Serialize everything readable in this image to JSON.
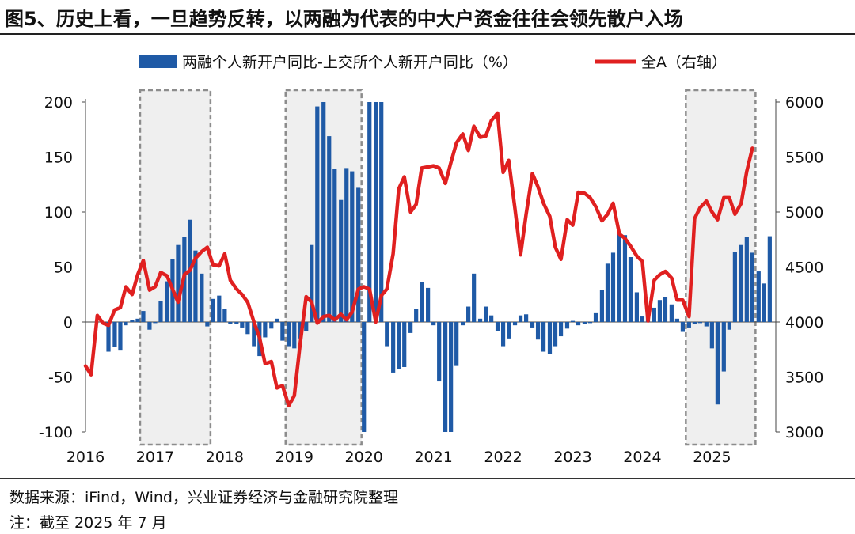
{
  "figure": {
    "title": "图5、历史上看，一旦趋势反转，以两融为代表的中大户资金往往会领先散户入场",
    "source": "数据来源：iFind，Wind，兴业证券经济与金融研究院整理",
    "note": "注：截至 2025 年 7 月"
  },
  "chart_data": {
    "type": "bar+line",
    "legend": [
      {
        "name": "两融个人新开户同比-上交所个人新开户同比（%）",
        "kind": "bar",
        "color": "#1f5aa6"
      },
      {
        "name": "全A（右轴）",
        "kind": "line",
        "color": "#e02020"
      }
    ],
    "x_labels": [
      "2016",
      "2017",
      "2018",
      "2019",
      "2020",
      "2021",
      "2022",
      "2023",
      "2024",
      "2025"
    ],
    "y_left": {
      "min": -100,
      "max": 200,
      "ticks": [
        -100,
        -50,
        0,
        50,
        100,
        150,
        200
      ]
    },
    "y_right": {
      "min": 3000,
      "max": 6000,
      "ticks": [
        3000,
        3500,
        4000,
        4500,
        5000,
        5500,
        6000
      ]
    },
    "time_start": 2016.0,
    "time_end": 2025.583,
    "bar_series": {
      "name": "两融个人新开户同比-上交所个人新开户同比（%）",
      "values": [
        [
          2016.33,
          -27
        ],
        [
          2016.42,
          -23
        ],
        [
          2016.5,
          -26
        ],
        [
          2016.58,
          -3
        ],
        [
          2016.67,
          2
        ],
        [
          2016.75,
          3
        ],
        [
          2016.83,
          10
        ],
        [
          2016.92,
          -7
        ],
        [
          2017.0,
          -1
        ],
        [
          2017.08,
          19
        ],
        [
          2017.17,
          37
        ],
        [
          2017.25,
          57
        ],
        [
          2017.33,
          70
        ],
        [
          2017.42,
          77
        ],
        [
          2017.5,
          93
        ],
        [
          2017.58,
          65
        ],
        [
          2017.67,
          44
        ],
        [
          2017.75,
          -4
        ],
        [
          2017.83,
          21
        ],
        [
          2017.92,
          24
        ],
        [
          2018.0,
          12
        ],
        [
          2018.08,
          -2
        ],
        [
          2018.17,
          -2
        ],
        [
          2018.25,
          -5
        ],
        [
          2018.33,
          -11
        ],
        [
          2018.42,
          -22
        ],
        [
          2018.5,
          -31
        ],
        [
          2018.58,
          -14
        ],
        [
          2018.67,
          -6
        ],
        [
          2018.75,
          3
        ],
        [
          2018.83,
          -17
        ],
        [
          2018.92,
          -22
        ],
        [
          2019.0,
          -24
        ],
        [
          2019.08,
          -15
        ],
        [
          2019.17,
          -8
        ],
        [
          2019.25,
          70
        ],
        [
          2019.33,
          196
        ],
        [
          2019.42,
          200
        ],
        [
          2019.5,
          169
        ],
        [
          2019.58,
          139
        ],
        [
          2019.67,
          111
        ],
        [
          2019.75,
          140
        ],
        [
          2019.83,
          137
        ],
        [
          2019.92,
          122
        ],
        [
          2020.0,
          -101
        ],
        [
          2020.08,
          200
        ],
        [
          2020.17,
          200
        ],
        [
          2020.25,
          200
        ],
        [
          2020.33,
          -22
        ],
        [
          2020.42,
          -46
        ],
        [
          2020.5,
          -43
        ],
        [
          2020.58,
          -41
        ],
        [
          2020.67,
          -10
        ],
        [
          2020.75,
          12
        ],
        [
          2020.83,
          36
        ],
        [
          2020.92,
          31
        ],
        [
          2021.0,
          -3
        ],
        [
          2021.08,
          -54
        ],
        [
          2021.17,
          -101
        ],
        [
          2021.25,
          -101
        ],
        [
          2021.33,
          -40
        ],
        [
          2021.42,
          -3
        ],
        [
          2021.5,
          14
        ],
        [
          2021.58,
          44
        ],
        [
          2021.67,
          3
        ],
        [
          2021.75,
          14
        ],
        [
          2021.83,
          6
        ],
        [
          2021.92,
          -8
        ],
        [
          2022.0,
          -22
        ],
        [
          2022.08,
          -15
        ],
        [
          2022.17,
          -3
        ],
        [
          2022.25,
          6
        ],
        [
          2022.33,
          7
        ],
        [
          2022.42,
          -5
        ],
        [
          2022.5,
          -16
        ],
        [
          2022.58,
          -27
        ],
        [
          2022.67,
          -29
        ],
        [
          2022.75,
          -22
        ],
        [
          2022.83,
          -13
        ],
        [
          2022.92,
          -6
        ],
        [
          2023.0,
          1
        ],
        [
          2023.08,
          -3
        ],
        [
          2023.17,
          -2
        ],
        [
          2023.25,
          -1
        ],
        [
          2023.33,
          8
        ],
        [
          2023.42,
          29
        ],
        [
          2023.5,
          53
        ],
        [
          2023.58,
          63
        ],
        [
          2023.67,
          82
        ],
        [
          2023.75,
          79
        ],
        [
          2023.83,
          59
        ],
        [
          2023.92,
          27
        ],
        [
          2024.0,
          5
        ],
        [
          2024.08,
          6
        ],
        [
          2024.17,
          13
        ],
        [
          2024.25,
          20
        ],
        [
          2024.33,
          23
        ],
        [
          2024.42,
          16
        ],
        [
          2024.5,
          3
        ],
        [
          2024.58,
          -9
        ],
        [
          2024.67,
          -5
        ],
        [
          2024.75,
          -2
        ],
        [
          2024.83,
          -1
        ],
        [
          2024.92,
          -4
        ],
        [
          2025.0,
          -24
        ],
        [
          2025.08,
          -75
        ],
        [
          2025.17,
          -45
        ],
        [
          2025.25,
          -7
        ],
        [
          2025.33,
          64
        ],
        [
          2025.42,
          70
        ],
        [
          2025.5,
          77
        ],
        [
          2025.58,
          63
        ],
        [
          2025.67,
          46
        ],
        [
          2025.75,
          35
        ],
        [
          2025.83,
          78
        ]
      ]
    },
    "line_series": {
      "name": "全A（右轴）",
      "values": [
        [
          2016.0,
          3600
        ],
        [
          2016.08,
          3520
        ],
        [
          2016.17,
          4060
        ],
        [
          2016.25,
          3990
        ],
        [
          2016.33,
          3970
        ],
        [
          2016.42,
          4110
        ],
        [
          2016.5,
          4130
        ],
        [
          2016.58,
          4320
        ],
        [
          2016.67,
          4250
        ],
        [
          2016.75,
          4430
        ],
        [
          2016.83,
          4560
        ],
        [
          2016.92,
          4290
        ],
        [
          2017.0,
          4320
        ],
        [
          2017.08,
          4450
        ],
        [
          2017.17,
          4420
        ],
        [
          2017.25,
          4300
        ],
        [
          2017.33,
          4180
        ],
        [
          2017.42,
          4430
        ],
        [
          2017.5,
          4470
        ],
        [
          2017.58,
          4580
        ],
        [
          2017.67,
          4640
        ],
        [
          2017.75,
          4680
        ],
        [
          2017.83,
          4520
        ],
        [
          2017.92,
          4510
        ],
        [
          2018.0,
          4620
        ],
        [
          2018.08,
          4380
        ],
        [
          2018.17,
          4300
        ],
        [
          2018.25,
          4250
        ],
        [
          2018.33,
          4180
        ],
        [
          2018.42,
          4000
        ],
        [
          2018.5,
          3860
        ],
        [
          2018.58,
          3620
        ],
        [
          2018.67,
          3640
        ],
        [
          2018.75,
          3400
        ],
        [
          2018.83,
          3420
        ],
        [
          2018.92,
          3240
        ],
        [
          2019.0,
          3330
        ],
        [
          2019.08,
          3780
        ],
        [
          2019.17,
          4230
        ],
        [
          2019.25,
          4180
        ],
        [
          2019.33,
          3990
        ],
        [
          2019.42,
          4050
        ],
        [
          2019.5,
          4060
        ],
        [
          2019.58,
          4020
        ],
        [
          2019.67,
          4070
        ],
        [
          2019.75,
          4020
        ],
        [
          2019.83,
          4090
        ],
        [
          2019.92,
          4300
        ],
        [
          2020.0,
          4320
        ],
        [
          2020.08,
          4300
        ],
        [
          2020.17,
          4000
        ],
        [
          2020.25,
          4240
        ],
        [
          2020.33,
          4300
        ],
        [
          2020.42,
          4620
        ],
        [
          2020.5,
          5210
        ],
        [
          2020.58,
          5320
        ],
        [
          2020.67,
          5000
        ],
        [
          2020.75,
          5070
        ],
        [
          2020.83,
          5400
        ],
        [
          2020.92,
          5410
        ],
        [
          2021.0,
          5420
        ],
        [
          2021.08,
          5400
        ],
        [
          2021.17,
          5260
        ],
        [
          2021.25,
          5450
        ],
        [
          2021.33,
          5630
        ],
        [
          2021.42,
          5710
        ],
        [
          2021.5,
          5560
        ],
        [
          2021.58,
          5780
        ],
        [
          2021.67,
          5680
        ],
        [
          2021.75,
          5690
        ],
        [
          2021.83,
          5830
        ],
        [
          2021.92,
          5900
        ],
        [
          2022.0,
          5360
        ],
        [
          2022.08,
          5470
        ],
        [
          2022.17,
          5030
        ],
        [
          2022.25,
          4610
        ],
        [
          2022.33,
          4980
        ],
        [
          2022.42,
          5350
        ],
        [
          2022.5,
          5230
        ],
        [
          2022.58,
          5080
        ],
        [
          2022.67,
          4960
        ],
        [
          2022.75,
          4680
        ],
        [
          2022.83,
          4570
        ],
        [
          2022.92,
          4930
        ],
        [
          2023.0,
          4880
        ],
        [
          2023.08,
          5180
        ],
        [
          2023.17,
          5170
        ],
        [
          2023.25,
          5130
        ],
        [
          2023.33,
          5050
        ],
        [
          2023.42,
          4920
        ],
        [
          2023.5,
          4980
        ],
        [
          2023.58,
          5080
        ],
        [
          2023.67,
          4800
        ],
        [
          2023.75,
          4760
        ],
        [
          2023.83,
          4690
        ],
        [
          2023.92,
          4600
        ],
        [
          2024.0,
          4550
        ],
        [
          2024.08,
          4010
        ],
        [
          2024.17,
          4380
        ],
        [
          2024.25,
          4430
        ],
        [
          2024.33,
          4460
        ],
        [
          2024.42,
          4400
        ],
        [
          2024.5,
          4200
        ],
        [
          2024.58,
          4200
        ],
        [
          2024.67,
          4050
        ],
        [
          2024.75,
          4940
        ],
        [
          2024.83,
          5040
        ],
        [
          2024.92,
          5100
        ],
        [
          2025.0,
          5000
        ],
        [
          2025.08,
          4930
        ],
        [
          2025.17,
          5130
        ],
        [
          2025.25,
          5130
        ],
        [
          2025.33,
          4980
        ],
        [
          2025.42,
          5080
        ],
        [
          2025.5,
          5370
        ],
        [
          2025.58,
          5580
        ]
      ]
    },
    "highlight_periods": [
      [
        2016.83,
        2017.75
      ],
      [
        2018.92,
        2019.92
      ],
      [
        2024.67,
        2025.58
      ]
    ]
  }
}
